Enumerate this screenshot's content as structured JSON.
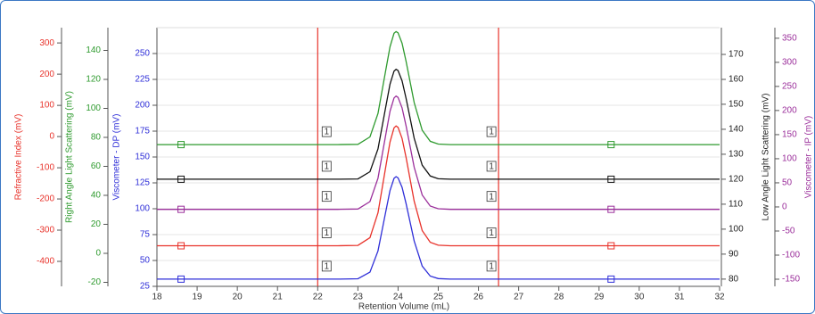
{
  "chart_data": {
    "type": "line",
    "x_label": "Retention Volume (mL)",
    "xlim": [
      18,
      32
    ],
    "xticks": [
      18,
      19,
      20,
      21,
      22,
      23,
      24,
      25,
      26,
      27,
      28,
      29,
      30,
      31,
      32
    ],
    "grid": true,
    "y_axes": [
      {
        "label": "Refractive Index (mV)",
        "color": "#e8322a",
        "side": "left",
        "ylim": [
          -480,
          349
        ],
        "yticks": [
          -400,
          -300,
          -200,
          -100,
          0,
          100,
          200,
          300
        ]
      },
      {
        "label": "Right Angle Light Scattering (mV)",
        "color": "#2e9a2e",
        "side": "left",
        "ylim": [
          -22.8,
          155.7
        ],
        "yticks": [
          -20,
          0,
          20,
          40,
          60,
          80,
          100,
          120,
          140
        ]
      },
      {
        "label": "Viscometer - DP (mV)",
        "color": "#2f2fd8",
        "side": "left",
        "ylim": [
          25,
          275
        ],
        "yticks": [
          25,
          50,
          75,
          100,
          125,
          150,
          175,
          200,
          225,
          250
        ]
      },
      {
        "label": "Low Angle Light Scattering (mV)",
        "color": "#222222",
        "side": "right",
        "ylim": [
          77.1,
          180.7
        ],
        "yticks": [
          80,
          90,
          100,
          110,
          120,
          130,
          140,
          150,
          160,
          170
        ]
      },
      {
        "label": "Viscometer - IP (mV)",
        "color": "#9b2f9b",
        "side": "right",
        "ylim": [
          -164.8,
          372
        ],
        "yticks": [
          -150,
          -100,
          -50,
          0,
          50,
          100,
          150,
          200,
          250,
          300,
          350
        ]
      }
    ],
    "x": [
      18,
      19,
      20,
      21,
      22,
      22.5,
      23,
      23.3,
      23.5,
      23.7,
      23.8,
      23.9,
      23.95,
      24.0,
      24.1,
      24.2,
      24.4,
      24.6,
      24.8,
      25,
      25.3,
      25.6,
      26,
      27,
      28,
      29,
      30,
      31,
      32
    ],
    "series": [
      {
        "color": "#2e9a2e",
        "axis": 1,
        "values": [
          75,
          75,
          75,
          75,
          75,
          75,
          75.2,
          80.3,
          96.5,
          127.3,
          142.5,
          151.8,
          153,
          152.1,
          144.9,
          132.5,
          104.0,
          84.9,
          77.3,
          75.4,
          75,
          75,
          75,
          75,
          75,
          75,
          75,
          75,
          75
        ]
      },
      {
        "color": "#111111",
        "axis": 3,
        "values": [
          120,
          120,
          120,
          120,
          120,
          120,
          120.1,
          123.0,
          132.1,
          149.5,
          158.1,
          163.3,
          164,
          163.5,
          159.4,
          152.4,
          136.4,
          125.6,
          121.3,
          120.2,
          120,
          120,
          120,
          120,
          120,
          120,
          120,
          120,
          120
        ]
      },
      {
        "color": "#9b2f9b",
        "axis": 4,
        "values": [
          -5,
          -5,
          -5,
          -5,
          -5,
          -5,
          -4.3,
          11.0,
          59.6,
          152.7,
          198.5,
          226.2,
          230,
          227.2,
          205.6,
          168.2,
          82.4,
          24.8,
          1.8,
          -3.8,
          -5,
          -5,
          -5,
          -5,
          -5,
          -5,
          -5,
          -5,
          -5
        ]
      },
      {
        "color": "#e8322a",
        "axis": 0,
        "values": [
          -350,
          -350,
          -350,
          -350,
          -350,
          -350,
          -348.8,
          -323.9,
          -244.4,
          -92.3,
          -17.5,
          27.9,
          34,
          29.4,
          -5.9,
          -67.0,
          -207.2,
          -301.2,
          -338.9,
          -348.1,
          -350,
          -350,
          -350,
          -350,
          -350,
          -350,
          -350,
          -350,
          -350
        ]
      },
      {
        "color": "#2f2fd8",
        "axis": 2,
        "values": [
          32,
          32,
          32,
          32,
          32,
          32,
          32.3,
          38.7,
          59.2,
          98.4,
          117.7,
          129.4,
          131,
          129.8,
          120.7,
          105.0,
          68.8,
          44.6,
          34.9,
          32.5,
          32,
          32,
          32,
          32,
          32,
          32,
          32,
          32,
          32
        ]
      }
    ],
    "limit_lines": [
      22,
      26.5
    ],
    "limit_color": "#e8322a",
    "flag_label": "1",
    "markers_x": [
      18.6,
      29.3
    ]
  }
}
